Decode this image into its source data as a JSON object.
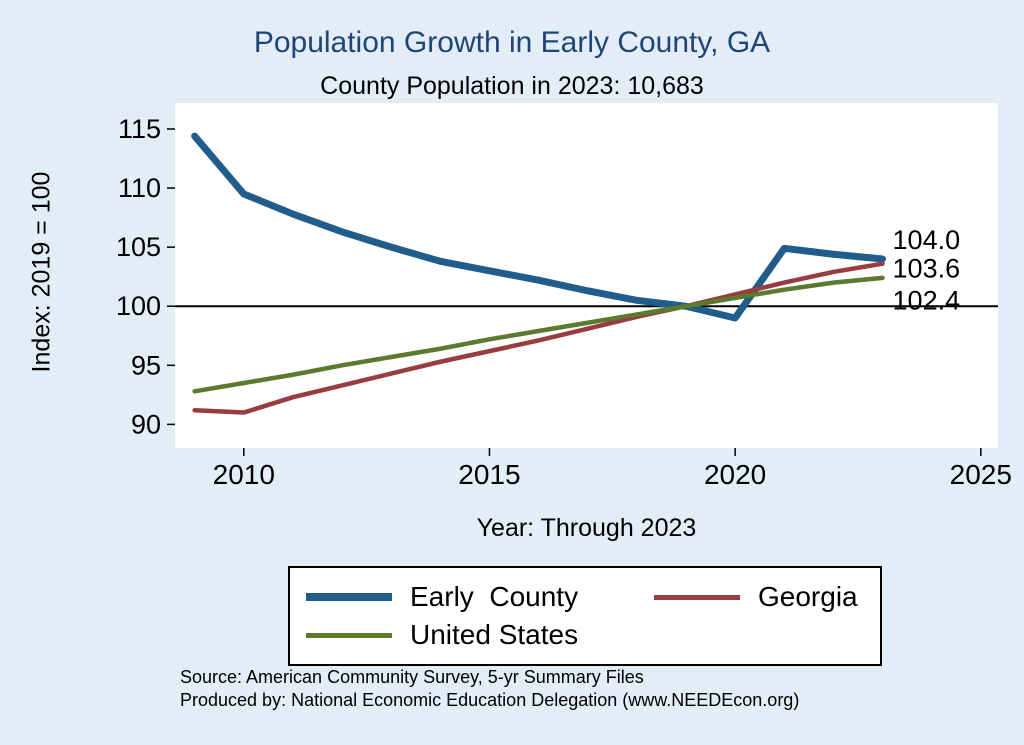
{
  "title": "Population Growth in Early County, GA",
  "subtitle": "County Population in 2023: 10,683",
  "colors": {
    "background": "#e3edf8",
    "title": "#1f4576",
    "plot_background": "#ffffff",
    "reference_line": "#000000"
  },
  "chart_data": {
    "type": "line",
    "x": [
      2009,
      2010,
      2011,
      2012,
      2013,
      2014,
      2015,
      2016,
      2017,
      2018,
      2019,
      2020,
      2021,
      2022,
      2023
    ],
    "series": [
      {
        "name": "Early County",
        "color": "#205d8c",
        "width": 7,
        "values": [
          114.4,
          109.5,
          107.8,
          106.3,
          105.0,
          103.8,
          103.0,
          102.2,
          101.3,
          100.5,
          100.0,
          99.0,
          104.9,
          104.4,
          104.0
        ],
        "end_label": "104.0",
        "end_label_y": 105.6
      },
      {
        "name": "Georgia",
        "color": "#973c40",
        "width": 4.5,
        "values": [
          91.2,
          91.0,
          92.3,
          93.3,
          94.3,
          95.3,
          96.2,
          97.1,
          98.1,
          99.1,
          100.0,
          101.0,
          102.0,
          102.9,
          103.6
        ],
        "end_label": "103.6",
        "end_label_y": 103.2
      },
      {
        "name": "United States",
        "color": "#5a7a2e",
        "width": 4.5,
        "values": [
          92.8,
          93.5,
          94.2,
          95.0,
          95.7,
          96.4,
          97.2,
          97.9,
          98.6,
          99.3,
          100.0,
          100.7,
          101.4,
          102.0,
          102.4
        ],
        "end_label": "102.4",
        "end_label_y": 100.5
      }
    ],
    "reference_y": 100,
    "xlim": [
      2008.6,
      2025.35
    ],
    "ylim": [
      88.0,
      117.2
    ],
    "xticks": [
      2010,
      2015,
      2020,
      2025
    ],
    "yticks": [
      90,
      95,
      100,
      105,
      110,
      115
    ],
    "xlabel": "Year: Through 2023",
    "ylabel": "Index: 2019 = 100",
    "grid": false,
    "legend_position": "bottom"
  },
  "legend": {
    "items": [
      {
        "label": "Early  County"
      },
      {
        "label": "Georgia"
      },
      {
        "label": "United States"
      }
    ]
  },
  "source_line1": "Source: American Community Survey, 5-yr Summary Files",
  "source_line2": "Produced by: National Economic Education Delegation (www.NEEDEcon.org)"
}
